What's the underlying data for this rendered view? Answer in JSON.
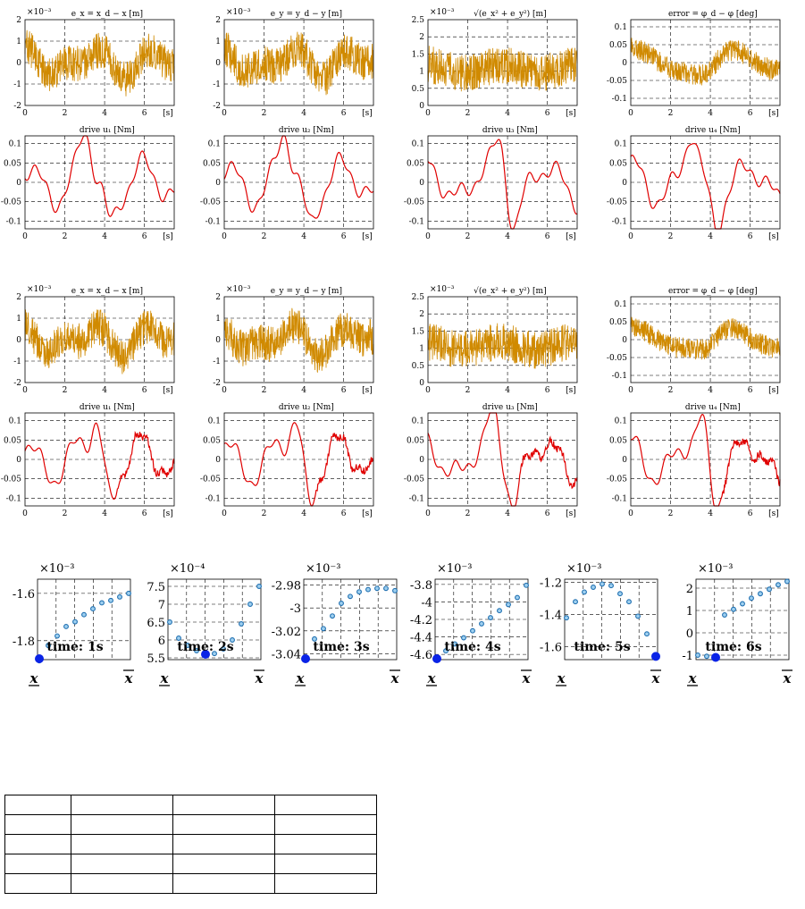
{
  "blocks": [
    {
      "panels": [
        {
          "title": "e_x = x_d − x [m]",
          "mag": "×10⁻³",
          "ylim": [
            -2,
            2
          ],
          "yticks": [
            "2",
            "1",
            "0",
            "-1",
            "-2"
          ],
          "yvals": [
            2,
            1,
            0,
            -1,
            -2
          ],
          "kind": "noise",
          "color": "#d08a00",
          "seed": 11
        },
        {
          "title": "e_y = y_d − y [m]",
          "mag": "×10⁻³",
          "ylim": [
            -2,
            2
          ],
          "yticks": [
            "2",
            "1",
            "0",
            "-1",
            "-2"
          ],
          "yvals": [
            2,
            1,
            0,
            -1,
            -2
          ],
          "kind": "noise",
          "color": "#d08a00",
          "seed": 23
        },
        {
          "title": "√(e_x² + e_y²) [m]",
          "mag": "×10⁻³",
          "ylim": [
            0,
            2.5
          ],
          "yticks": [
            "2.5",
            "2",
            "1.5",
            "1",
            "0.5",
            "0"
          ],
          "yvals": [
            2.5,
            2,
            1.5,
            1,
            0.5,
            0
          ],
          "kind": "norm",
          "color": "#d08a00",
          "seed": 37
        },
        {
          "title": "error = φ_d − φ [deg]",
          "mag": "",
          "ylim": [
            -0.12,
            0.12
          ],
          "yticks": [
            "0.1",
            "0.05",
            "0",
            "-0.05",
            "-0.1"
          ],
          "yvals": [
            0.1,
            0.05,
            0,
            -0.05,
            -0.1
          ],
          "kind": "phi",
          "color": "#d08a00",
          "seed": 51
        },
        {
          "title": "drive u₁ [Nm]",
          "mag": "",
          "ylim": [
            -0.12,
            0.12
          ],
          "yticks": [
            "0.1",
            "0.05",
            "0",
            "-0.05",
            "-0.1"
          ],
          "yvals": [
            0.1,
            0.05,
            0,
            -0.05,
            -0.1
          ],
          "kind": "drive",
          "color": "#e00000",
          "seed": 61
        },
        {
          "title": "drive u₂ [Nm]",
          "mag": "",
          "ylim": [
            -0.12,
            0.12
          ],
          "yticks": [
            "0.1",
            "0.05",
            "0",
            "-0.05",
            "-0.1"
          ],
          "yvals": [
            0.1,
            0.05,
            0,
            -0.05,
            -0.1
          ],
          "kind": "drive",
          "color": "#e00000",
          "seed": 73
        },
        {
          "title": "drive u₃ [Nm]",
          "mag": "",
          "ylim": [
            -0.12,
            0.12
          ],
          "yticks": [
            "0.1",
            "0.05",
            "0",
            "-0.05",
            "-0.1"
          ],
          "yvals": [
            0.1,
            0.05,
            0,
            -0.05,
            -0.1
          ],
          "kind": "drive",
          "color": "#e00000",
          "seed": 89
        },
        {
          "title": "drive u₄ [Nm]",
          "mag": "",
          "ylim": [
            -0.12,
            0.12
          ],
          "yticks": [
            "0.1",
            "0.05",
            "0",
            "-0.05",
            "-0.1"
          ],
          "yvals": [
            0.1,
            0.05,
            0,
            -0.05,
            -0.1
          ],
          "kind": "drive",
          "color": "#e00000",
          "seed": 97
        }
      ]
    },
    {
      "panels": [
        {
          "title": "e_x = x_d − x [m]",
          "mag": "×10⁻³",
          "ylim": [
            -2,
            2
          ],
          "yticks": [
            "2",
            "1",
            "0",
            "-1",
            "-2"
          ],
          "yvals": [
            2,
            1,
            0,
            -1,
            -2
          ],
          "kind": "noise",
          "color": "#d08a00",
          "seed": 111
        },
        {
          "title": "e_y = y_d − y [m]",
          "mag": "×10⁻³",
          "ylim": [
            -2,
            2
          ],
          "yticks": [
            "2",
            "1",
            "0",
            "-1",
            "-2"
          ],
          "yvals": [
            2,
            1,
            0,
            -1,
            -2
          ],
          "kind": "noise",
          "color": "#d08a00",
          "seed": 123
        },
        {
          "title": "√(e_x² + e_y²) [m]",
          "mag": "×10⁻³",
          "ylim": [
            0,
            2.5
          ],
          "yticks": [
            "2.5",
            "2",
            "1.5",
            "1",
            "0.5",
            "0"
          ],
          "yvals": [
            2.5,
            2,
            1.5,
            1,
            0.5,
            0
          ],
          "kind": "norm",
          "color": "#d08a00",
          "seed": 137
        },
        {
          "title": "error = φ_d − φ [deg]",
          "mag": "",
          "ylim": [
            -0.12,
            0.12
          ],
          "yticks": [
            "0.1",
            "0.05",
            "0",
            "-0.05",
            "-0.1"
          ],
          "yvals": [
            0.1,
            0.05,
            0,
            -0.05,
            -0.1
          ],
          "kind": "phi",
          "color": "#d08a00",
          "seed": 151
        },
        {
          "title": "drive u₁ [Nm]",
          "mag": "",
          "ylim": [
            -0.12,
            0.12
          ],
          "yticks": [
            "0.1",
            "0.05",
            "0",
            "-0.05",
            "-0.1"
          ],
          "yvals": [
            0.1,
            0.05,
            0,
            -0.05,
            -0.1
          ],
          "kind": "drive",
          "color": "#e00000",
          "seed": 161
        },
        {
          "title": "drive u₂ [Nm]",
          "mag": "",
          "ylim": [
            -0.12,
            0.12
          ],
          "yticks": [
            "0.1",
            "0.05",
            "0",
            "-0.05",
            "-0.1"
          ],
          "yvals": [
            0.1,
            0.05,
            0,
            -0.05,
            -0.1
          ],
          "kind": "drive",
          "color": "#e00000",
          "seed": 173
        },
        {
          "title": "drive u₃ [Nm]",
          "mag": "",
          "ylim": [
            -0.12,
            0.12
          ],
          "yticks": [
            "0.1",
            "0.05",
            "0",
            "-0.05",
            "-0.1"
          ],
          "yvals": [
            0.1,
            0.05,
            0,
            -0.05,
            -0.1
          ],
          "kind": "drive",
          "color": "#e00000",
          "seed": 189
        },
        {
          "title": "drive u₄ [Nm]",
          "mag": "",
          "ylim": [
            -0.12,
            0.12
          ],
          "yticks": [
            "0.1",
            "0.05",
            "0",
            "-0.05",
            "-0.1"
          ],
          "yvals": [
            0.1,
            0.05,
            0,
            -0.05,
            -0.1
          ],
          "kind": "drive",
          "color": "#e00000",
          "seed": 197
        }
      ]
    }
  ],
  "xticks": [
    "0",
    "2",
    "4",
    "6"
  ],
  "xtick_values": [
    0,
    2,
    4,
    6
  ],
  "x_unit": "[s]",
  "t_max": 7.5,
  "small_plots": [
    {
      "mag": "×10⁻³",
      "label": "time:  1s",
      "ylim": [
        -1.88,
        -1.54
      ],
      "yticks": [
        "-1.6",
        "-1.8"
      ],
      "ytick_values": [
        -1.6,
        -1.8
      ],
      "values": [
        -1.885,
        -1.82,
        -1.78,
        -1.74,
        -1.72,
        -1.69,
        -1.665,
        -1.64,
        -1.63,
        -1.615,
        -1.6
      ],
      "dot_index": 0
    },
    {
      "mag": "×10⁻⁴",
      "label": "time:  2s",
      "ylim": [
        5.45,
        7.7
      ],
      "yticks": [
        "7.5",
        "7",
        "6.5",
        "6",
        "5.5"
      ],
      "ytick_values": [
        7.5,
        7,
        6.5,
        6,
        5.5
      ],
      "values": [
        6.5,
        6.05,
        5.85,
        5.7,
        5.6,
        5.62,
        5.75,
        6.0,
        6.45,
        7.0,
        7.5
      ],
      "dot_index": 4
    },
    {
      "mag": "×10⁻³",
      "label": "time:  3s",
      "ylim": [
        -3.045,
        -2.975
      ],
      "yticks": [
        "-2.98",
        "-3",
        "-3.02",
        "-3.04"
      ],
      "ytick_values": [
        -2.98,
        -3,
        -3.02,
        -3.04
      ],
      "values": [
        -3.045,
        -3.027,
        -3.018,
        -3.007,
        -2.996,
        -2.99,
        -2.986,
        -2.984,
        -2.983,
        -2.983,
        -2.985
      ],
      "dot_index": 0
    },
    {
      "mag": "×10⁻³",
      "label": "time:  4s",
      "ylim": [
        -4.66,
        -3.74
      ],
      "yticks": [
        "-3.8",
        "-4",
        "-4.2",
        "-4.4",
        "-4.6"
      ],
      "ytick_values": [
        -3.8,
        -4,
        -4.2,
        -4.4,
        -4.6
      ],
      "values": [
        -4.65,
        -4.56,
        -4.48,
        -4.41,
        -4.33,
        -4.25,
        -4.18,
        -4.1,
        -4.03,
        -3.95,
        -3.81
      ],
      "dot_index": 0
    },
    {
      "mag": "×10⁻³",
      "label": "time:  5s",
      "ylim": [
        -1.68,
        -1.18
      ],
      "yticks": [
        "-1.2",
        "-1.4",
        "-1.6"
      ],
      "ytick_values": [
        -1.2,
        -1.4,
        -1.6
      ],
      "values": [
        -1.42,
        -1.32,
        -1.26,
        -1.23,
        -1.21,
        -1.22,
        -1.27,
        -1.32,
        -1.41,
        -1.52,
        -1.66
      ],
      "dot_index": 10
    },
    {
      "mag": "×10⁻³",
      "label": "time:  6s",
      "ylim": [
        -1.2,
        2.4
      ],
      "yticks": [
        "2",
        "1",
        "0",
        "-1"
      ],
      "ytick_values": [
        2,
        1,
        0,
        -1
      ],
      "values": [
        -1.0,
        -1.05,
        -1.1,
        0.8,
        1.05,
        1.3,
        1.55,
        1.75,
        1.95,
        2.15,
        2.3
      ],
      "dot_index": 2
    }
  ],
  "small_x_left": "x",
  "small_x_right": "x",
  "table": {
    "rows": [
      [
        "",
        "",
        "",
        ""
      ],
      [
        "",
        "",
        "",
        ""
      ],
      [
        "",
        "",
        "",
        ""
      ],
      [
        "",
        "",
        "",
        ""
      ],
      [
        "",
        "",
        "",
        ""
      ]
    ]
  }
}
